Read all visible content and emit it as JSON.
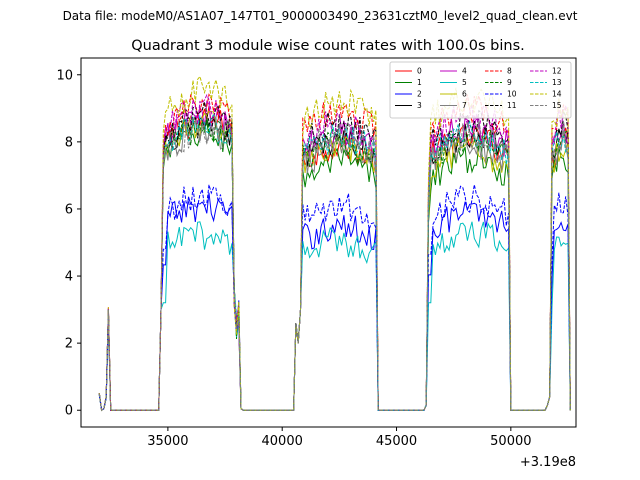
{
  "chart_data": {
    "type": "line",
    "suptitle": "Data file: modeM0/AS1A07_147T01_9000003490_23631cztM0_level2_quad_clean.evt",
    "title": "Quadrant 3 module wise count rates with 100.0s bins.",
    "xlabel": "",
    "ylabel": "",
    "x_offset_label": "+3.19e8",
    "xlim": [
      31200,
      52850
    ],
    "ylim": [
      -0.5,
      10.5
    ],
    "xticks": [
      35000,
      40000,
      45000,
      50000
    ],
    "xtick_labels": [
      "35000",
      "40000",
      "45000",
      "50000"
    ],
    "yticks": [
      0,
      2,
      4,
      6,
      8,
      10
    ],
    "ytick_labels": [
      "0",
      "2",
      "4",
      "6",
      "8",
      "10"
    ],
    "legend_position": "upper-right",
    "legend_columns": 4,
    "segments": [
      {
        "start": 32000,
        "end": 32400,
        "startup": [
          0.5,
          0.0,
          0.05,
          0.4,
          3.0,
          2.0,
          0.0
        ]
      },
      {
        "start": 34650,
        "end": 38250,
        "startup": [
          0.15,
          3.0,
          7.0,
          7.5
        ],
        "tail": [
          3.4,
          2.6,
          3.0,
          0.05
        ]
      },
      {
        "start": 40550,
        "end": 44100,
        "startup": [
          0.15,
          2.6,
          2.0,
          3.0
        ],
        "tail": []
      },
      {
        "start": 46300,
        "end": 49900,
        "startup": [
          0.15,
          6.0,
          7.5
        ],
        "tail": []
      },
      {
        "start": 51600,
        "end": 52550,
        "startup": [
          0.15,
          0.4,
          7.5
        ],
        "tail": []
      }
    ],
    "series": [
      {
        "name": "0",
        "color": "#ff0000",
        "dash": "solid",
        "levels": [
          7.6,
          8.1,
          7.4,
          7.6,
          7.6
        ]
      },
      {
        "name": "1",
        "color": "#008000",
        "dash": "solid",
        "levels": [
          7.4,
          7.7,
          6.9,
          7.0,
          7.2
        ]
      },
      {
        "name": "2",
        "color": "#0000ff",
        "dash": "solid",
        "levels": [
          5.6,
          5.7,
          5.1,
          5.5,
          5.4
        ]
      },
      {
        "name": "3",
        "color": "#000000",
        "dash": "solid",
        "levels": [
          8.2,
          8.0,
          7.5,
          7.7,
          7.8
        ]
      },
      {
        "name": "4",
        "color": "#bf00bf",
        "dash": "solid",
        "levels": [
          8.3,
          8.2,
          7.8,
          7.9,
          7.9
        ]
      },
      {
        "name": "5",
        "color": "#00bfbf",
        "dash": "solid",
        "levels": [
          5.0,
          4.9,
          4.7,
          4.9,
          4.8
        ]
      },
      {
        "name": "6",
        "color": "#bfbf00",
        "dash": "solid",
        "levels": [
          7.5,
          8.0,
          7.3,
          7.2,
          7.4
        ]
      },
      {
        "name": "7",
        "color": "#808080",
        "dash": "solid",
        "levels": [
          7.8,
          7.8,
          7.3,
          7.4,
          7.5
        ]
      },
      {
        "name": "8",
        "color": "#ff0000",
        "dash": "dashed",
        "levels": [
          8.6,
          8.5,
          8.3,
          8.4,
          8.4
        ]
      },
      {
        "name": "9",
        "color": "#008000",
        "dash": "dashed",
        "levels": [
          7.9,
          7.9,
          7.5,
          7.6,
          7.7
        ]
      },
      {
        "name": "10",
        "color": "#0000ff",
        "dash": "dashed",
        "levels": [
          6.0,
          6.0,
          5.7,
          5.9,
          5.8
        ]
      },
      {
        "name": "11",
        "color": "#000000",
        "dash": "dashed",
        "levels": [
          8.2,
          8.2,
          8.0,
          8.1,
          8.0
        ]
      },
      {
        "name": "12",
        "color": "#bf00bf",
        "dash": "dashed",
        "levels": [
          8.4,
          8.4,
          8.0,
          8.2,
          8.2
        ]
      },
      {
        "name": "13",
        "color": "#00bfbf",
        "dash": "dashed",
        "levels": [
          7.9,
          7.9,
          7.6,
          7.7,
          7.7
        ]
      },
      {
        "name": "14",
        "color": "#bfbf00",
        "dash": "dashed",
        "levels": [
          8.6,
          8.9,
          8.6,
          8.7,
          8.6
        ]
      },
      {
        "name": "15",
        "color": "#808080",
        "dash": "dashed",
        "levels": [
          7.9,
          7.8,
          7.7,
          7.7,
          7.7
        ]
      }
    ]
  }
}
